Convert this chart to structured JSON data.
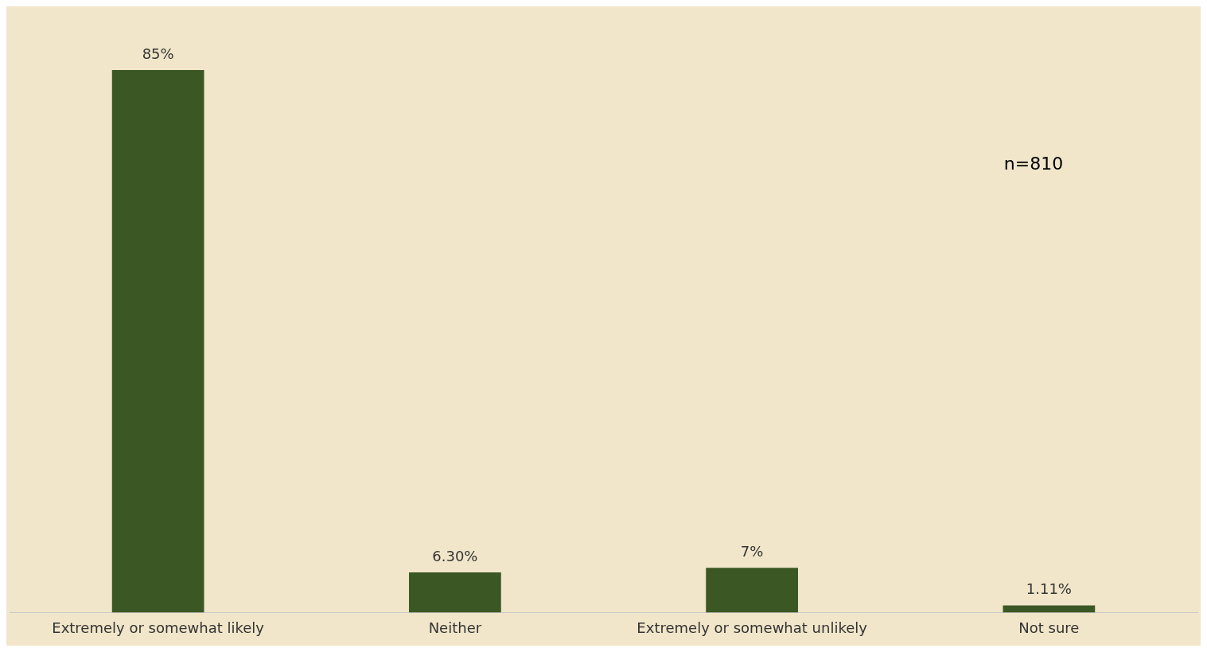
{
  "chart_data": {
    "type": "bar",
    "categories": [
      "Extremely or somewhat likely",
      "Neither",
      "Extremely or somewhat unlikely",
      "Not sure"
    ],
    "values": [
      85,
      6.3,
      7,
      1.11
    ],
    "value_labels": [
      "85%",
      "6.30%",
      "7%",
      "1.11%"
    ],
    "color": "#3b5723",
    "annotations": [
      "n=810"
    ],
    "grid": false,
    "legend": false
  }
}
